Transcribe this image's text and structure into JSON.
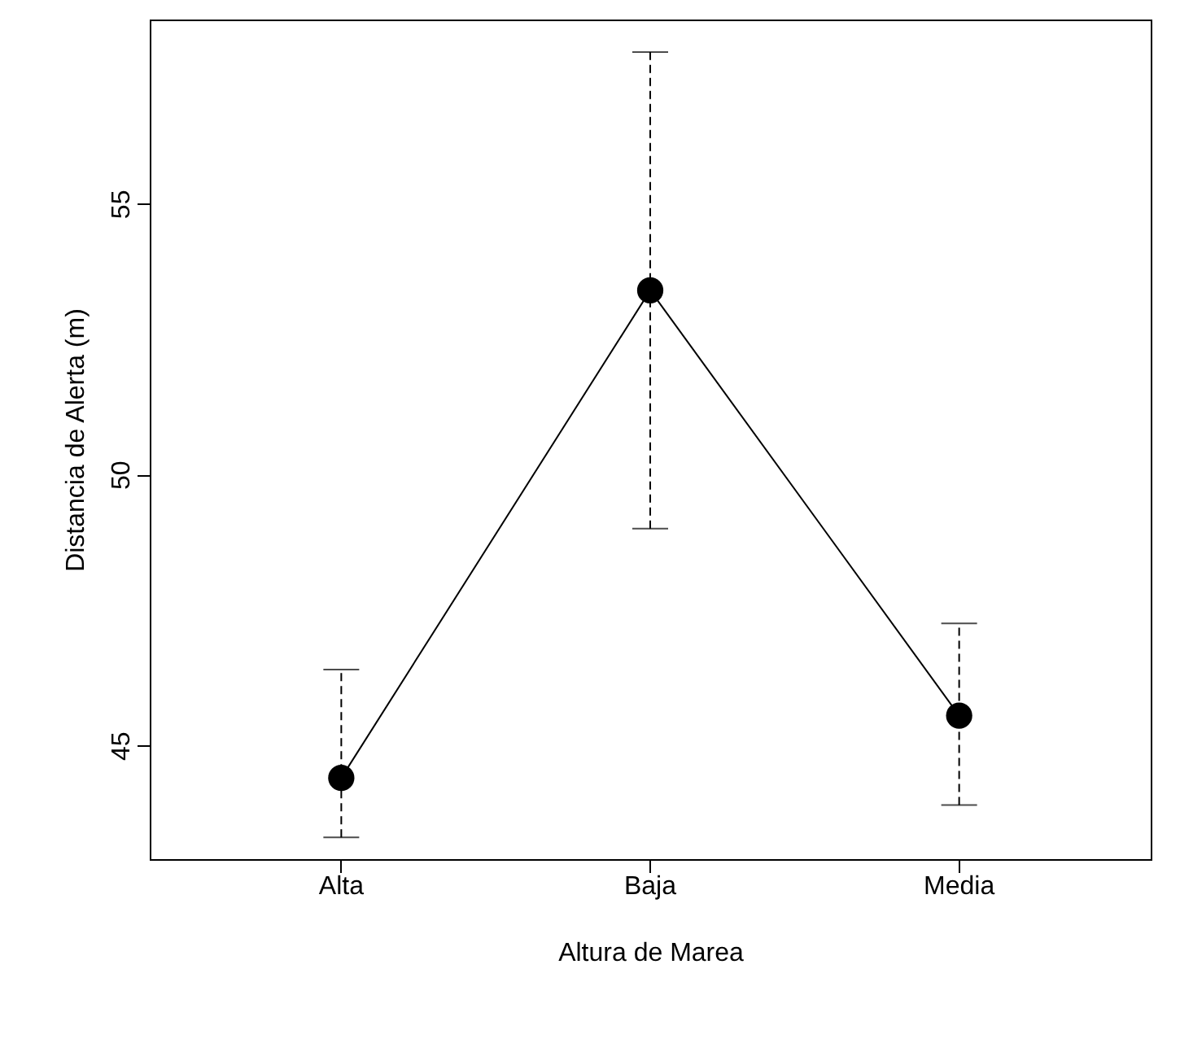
{
  "chart_data": {
    "type": "line",
    "xlabel": "Altura de Marea",
    "ylabel": "Distancia de Alerta (m)",
    "categories": [
      "Alta",
      "Baja",
      "Media"
    ],
    "series": [
      {
        "color": "#000000",
        "values": [
          44.4,
          53.4,
          45.55
        ],
        "errors": [
          [
            43.3,
            46.4
          ],
          [
            49.0,
            57.8
          ],
          [
            43.9,
            47.25
          ]
        ]
      }
    ],
    "ylim": [
      42.9,
      58.4
    ],
    "yticks": [
      45,
      50,
      55
    ],
    "grid": false,
    "marker": "circle",
    "line_style": "solid"
  }
}
